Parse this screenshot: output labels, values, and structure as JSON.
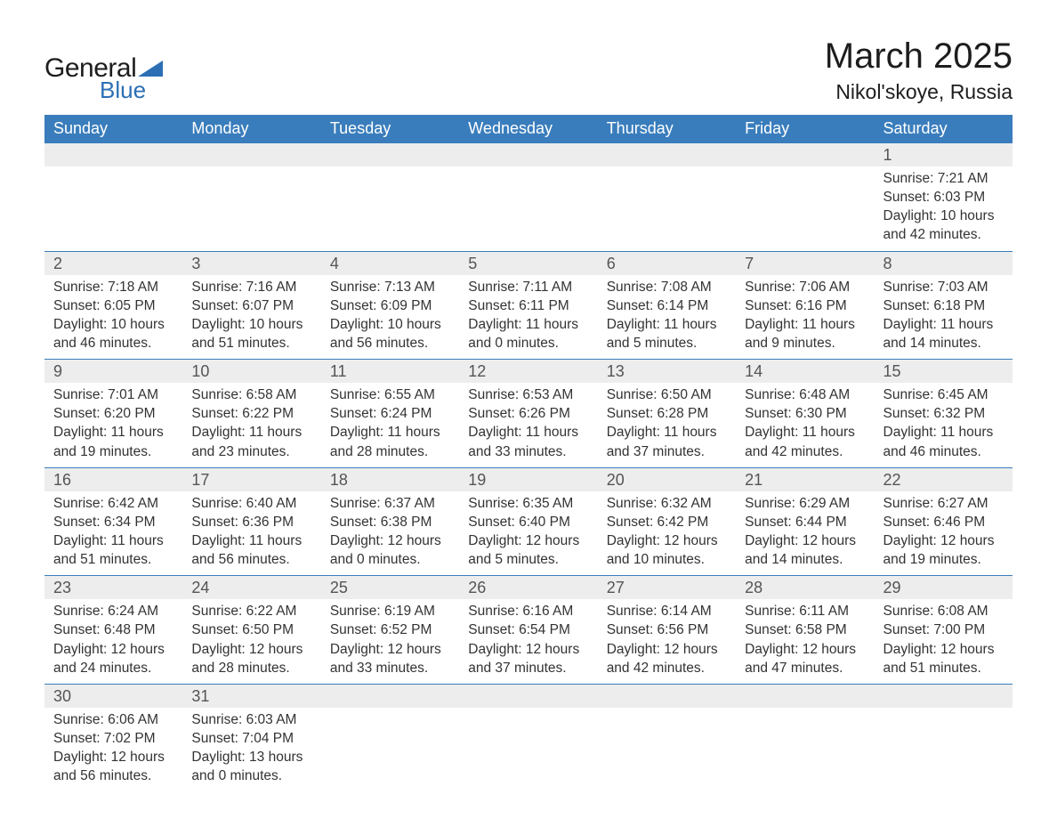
{
  "logo": {
    "text_general": "General",
    "text_blue": "Blue",
    "shape_color": "#2c6fb5"
  },
  "title": "March 2025",
  "location": "Nikol'skoye, Russia",
  "header_bg": "#3a7dbc",
  "header_text_color": "#ffffff",
  "daynum_bg": "#ededed",
  "row_border_color": "#3a7dbc",
  "text_color": "#333333",
  "daynum_color": "#555555",
  "body_bg": "#ffffff",
  "font_family": "Arial",
  "title_fontsize": 40,
  "location_fontsize": 23,
  "header_fontsize": 18,
  "daynum_fontsize": 18,
  "detail_fontsize": 15.5,
  "day_names": [
    "Sunday",
    "Monday",
    "Tuesday",
    "Wednesday",
    "Thursday",
    "Friday",
    "Saturday"
  ],
  "weeks": [
    [
      null,
      null,
      null,
      null,
      null,
      null,
      {
        "day": "1",
        "sunrise": "Sunrise: 7:21 AM",
        "sunset": "Sunset: 6:03 PM",
        "daylight1": "Daylight: 10 hours",
        "daylight2": "and 42 minutes."
      }
    ],
    [
      {
        "day": "2",
        "sunrise": "Sunrise: 7:18 AM",
        "sunset": "Sunset: 6:05 PM",
        "daylight1": "Daylight: 10 hours",
        "daylight2": "and 46 minutes."
      },
      {
        "day": "3",
        "sunrise": "Sunrise: 7:16 AM",
        "sunset": "Sunset: 6:07 PM",
        "daylight1": "Daylight: 10 hours",
        "daylight2": "and 51 minutes."
      },
      {
        "day": "4",
        "sunrise": "Sunrise: 7:13 AM",
        "sunset": "Sunset: 6:09 PM",
        "daylight1": "Daylight: 10 hours",
        "daylight2": "and 56 minutes."
      },
      {
        "day": "5",
        "sunrise": "Sunrise: 7:11 AM",
        "sunset": "Sunset: 6:11 PM",
        "daylight1": "Daylight: 11 hours",
        "daylight2": "and 0 minutes."
      },
      {
        "day": "6",
        "sunrise": "Sunrise: 7:08 AM",
        "sunset": "Sunset: 6:14 PM",
        "daylight1": "Daylight: 11 hours",
        "daylight2": "and 5 minutes."
      },
      {
        "day": "7",
        "sunrise": "Sunrise: 7:06 AM",
        "sunset": "Sunset: 6:16 PM",
        "daylight1": "Daylight: 11 hours",
        "daylight2": "and 9 minutes."
      },
      {
        "day": "8",
        "sunrise": "Sunrise: 7:03 AM",
        "sunset": "Sunset: 6:18 PM",
        "daylight1": "Daylight: 11 hours",
        "daylight2": "and 14 minutes."
      }
    ],
    [
      {
        "day": "9",
        "sunrise": "Sunrise: 7:01 AM",
        "sunset": "Sunset: 6:20 PM",
        "daylight1": "Daylight: 11 hours",
        "daylight2": "and 19 minutes."
      },
      {
        "day": "10",
        "sunrise": "Sunrise: 6:58 AM",
        "sunset": "Sunset: 6:22 PM",
        "daylight1": "Daylight: 11 hours",
        "daylight2": "and 23 minutes."
      },
      {
        "day": "11",
        "sunrise": "Sunrise: 6:55 AM",
        "sunset": "Sunset: 6:24 PM",
        "daylight1": "Daylight: 11 hours",
        "daylight2": "and 28 minutes."
      },
      {
        "day": "12",
        "sunrise": "Sunrise: 6:53 AM",
        "sunset": "Sunset: 6:26 PM",
        "daylight1": "Daylight: 11 hours",
        "daylight2": "and 33 minutes."
      },
      {
        "day": "13",
        "sunrise": "Sunrise: 6:50 AM",
        "sunset": "Sunset: 6:28 PM",
        "daylight1": "Daylight: 11 hours",
        "daylight2": "and 37 minutes."
      },
      {
        "day": "14",
        "sunrise": "Sunrise: 6:48 AM",
        "sunset": "Sunset: 6:30 PM",
        "daylight1": "Daylight: 11 hours",
        "daylight2": "and 42 minutes."
      },
      {
        "day": "15",
        "sunrise": "Sunrise: 6:45 AM",
        "sunset": "Sunset: 6:32 PM",
        "daylight1": "Daylight: 11 hours",
        "daylight2": "and 46 minutes."
      }
    ],
    [
      {
        "day": "16",
        "sunrise": "Sunrise: 6:42 AM",
        "sunset": "Sunset: 6:34 PM",
        "daylight1": "Daylight: 11 hours",
        "daylight2": "and 51 minutes."
      },
      {
        "day": "17",
        "sunrise": "Sunrise: 6:40 AM",
        "sunset": "Sunset: 6:36 PM",
        "daylight1": "Daylight: 11 hours",
        "daylight2": "and 56 minutes."
      },
      {
        "day": "18",
        "sunrise": "Sunrise: 6:37 AM",
        "sunset": "Sunset: 6:38 PM",
        "daylight1": "Daylight: 12 hours",
        "daylight2": "and 0 minutes."
      },
      {
        "day": "19",
        "sunrise": "Sunrise: 6:35 AM",
        "sunset": "Sunset: 6:40 PM",
        "daylight1": "Daylight: 12 hours",
        "daylight2": "and 5 minutes."
      },
      {
        "day": "20",
        "sunrise": "Sunrise: 6:32 AM",
        "sunset": "Sunset: 6:42 PM",
        "daylight1": "Daylight: 12 hours",
        "daylight2": "and 10 minutes."
      },
      {
        "day": "21",
        "sunrise": "Sunrise: 6:29 AM",
        "sunset": "Sunset: 6:44 PM",
        "daylight1": "Daylight: 12 hours",
        "daylight2": "and 14 minutes."
      },
      {
        "day": "22",
        "sunrise": "Sunrise: 6:27 AM",
        "sunset": "Sunset: 6:46 PM",
        "daylight1": "Daylight: 12 hours",
        "daylight2": "and 19 minutes."
      }
    ],
    [
      {
        "day": "23",
        "sunrise": "Sunrise: 6:24 AM",
        "sunset": "Sunset: 6:48 PM",
        "daylight1": "Daylight: 12 hours",
        "daylight2": "and 24 minutes."
      },
      {
        "day": "24",
        "sunrise": "Sunrise: 6:22 AM",
        "sunset": "Sunset: 6:50 PM",
        "daylight1": "Daylight: 12 hours",
        "daylight2": "and 28 minutes."
      },
      {
        "day": "25",
        "sunrise": "Sunrise: 6:19 AM",
        "sunset": "Sunset: 6:52 PM",
        "daylight1": "Daylight: 12 hours",
        "daylight2": "and 33 minutes."
      },
      {
        "day": "26",
        "sunrise": "Sunrise: 6:16 AM",
        "sunset": "Sunset: 6:54 PM",
        "daylight1": "Daylight: 12 hours",
        "daylight2": "and 37 minutes."
      },
      {
        "day": "27",
        "sunrise": "Sunrise: 6:14 AM",
        "sunset": "Sunset: 6:56 PM",
        "daylight1": "Daylight: 12 hours",
        "daylight2": "and 42 minutes."
      },
      {
        "day": "28",
        "sunrise": "Sunrise: 6:11 AM",
        "sunset": "Sunset: 6:58 PM",
        "daylight1": "Daylight: 12 hours",
        "daylight2": "and 47 minutes."
      },
      {
        "day": "29",
        "sunrise": "Sunrise: 6:08 AM",
        "sunset": "Sunset: 7:00 PM",
        "daylight1": "Daylight: 12 hours",
        "daylight2": "and 51 minutes."
      }
    ],
    [
      {
        "day": "30",
        "sunrise": "Sunrise: 6:06 AM",
        "sunset": "Sunset: 7:02 PM",
        "daylight1": "Daylight: 12 hours",
        "daylight2": "and 56 minutes."
      },
      {
        "day": "31",
        "sunrise": "Sunrise: 6:03 AM",
        "sunset": "Sunset: 7:04 PM",
        "daylight1": "Daylight: 13 hours",
        "daylight2": "and 0 minutes."
      },
      null,
      null,
      null,
      null,
      null
    ]
  ]
}
